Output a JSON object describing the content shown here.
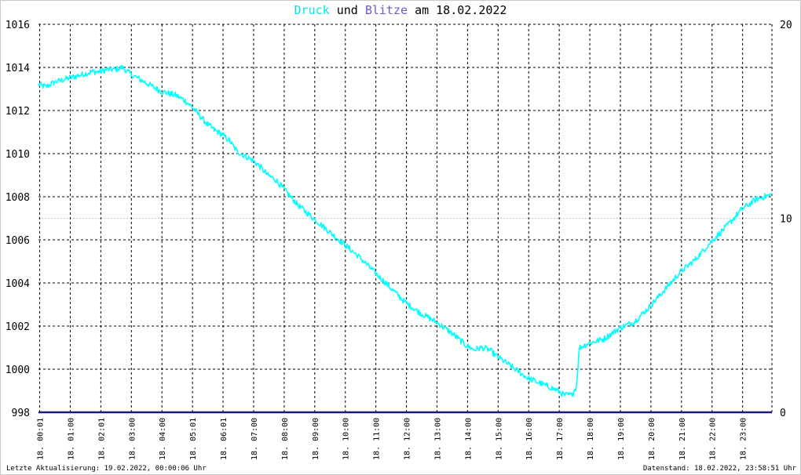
{
  "title": {
    "series1": "Druck",
    "connector1": "und",
    "series2": "Blitze",
    "connector2": "am",
    "date": "18.02.2022"
  },
  "footer": {
    "left": "Letzte Aktualisierung: 19.02.2022, 00:00:06 Uhr",
    "right": "Datenstand: 18.02.2022, 23:58:51 Uhr"
  },
  "colors": {
    "pressure": "#00ffff",
    "lightning": "#6a5acd",
    "title_pressure": "#00e5e5",
    "title_lightning": "#6a5acd",
    "baseline": "#1a1a80",
    "grid": "#000000",
    "ref_line": "#c8c8c8"
  },
  "chart_data": {
    "type": "line",
    "title": "Druck und Blitze am 18.02.2022",
    "x_tick_labels": [
      "18. 00:01",
      "18. 01:00",
      "18. 02:01",
      "18. 03:00",
      "18. 04:00",
      "18. 05:01",
      "18. 06:01",
      "18. 07:00",
      "18. 08:00",
      "18. 09:00",
      "18. 10:00",
      "18. 11:00",
      "18. 12:00",
      "18. 13:00",
      "18. 14:00",
      "18. 15:00",
      "18. 16:00",
      "18. 17:00",
      "18. 18:00",
      "18. 19:00",
      "18. 20:00",
      "18. 21:00",
      "18. 22:00",
      "18. 23:00"
    ],
    "xlim_hours": [
      0,
      24
    ],
    "y_left": {
      "ylim": [
        998,
        1016
      ],
      "ticks": [
        998,
        1000,
        1002,
        1004,
        1006,
        1008,
        1010,
        1012,
        1014,
        1016
      ]
    },
    "y_right": {
      "ylim": [
        0,
        20
      ],
      "ticks": [
        0,
        10,
        20
      ]
    },
    "reference_line_right": 10,
    "grid": true,
    "series": [
      {
        "name": "Druck",
        "axis": "left",
        "x_hours": [
          0.0,
          0.25,
          0.5,
          0.75,
          1.0,
          1.25,
          1.5,
          1.75,
          2.0,
          2.25,
          2.5,
          2.75,
          3.0,
          3.25,
          3.5,
          3.75,
          4.0,
          4.25,
          4.5,
          4.75,
          5.0,
          5.25,
          5.5,
          5.75,
          6.0,
          6.25,
          6.5,
          6.75,
          7.0,
          7.25,
          7.5,
          7.75,
          8.0,
          8.5,
          9.0,
          9.5,
          10.0,
          10.5,
          11.0,
          11.5,
          12.0,
          12.5,
          13.0,
          13.5,
          14.0,
          14.25,
          14.5,
          14.75,
          15.0,
          15.5,
          16.0,
          16.5,
          17.0,
          17.2,
          17.45,
          17.6,
          17.7,
          18.0,
          18.5,
          19.0,
          19.5,
          20.0,
          20.5,
          21.0,
          21.5,
          22.0,
          22.5,
          23.0,
          23.5,
          24.0
        ],
        "values": [
          1013.2,
          1013.1,
          1013.3,
          1013.4,
          1013.5,
          1013.6,
          1013.7,
          1013.8,
          1013.8,
          1013.9,
          1013.9,
          1014.0,
          1013.7,
          1013.5,
          1013.3,
          1013.1,
          1012.9,
          1012.8,
          1012.7,
          1012.5,
          1012.2,
          1011.8,
          1011.4,
          1011.1,
          1010.9,
          1010.6,
          1010.1,
          1009.9,
          1009.7,
          1009.4,
          1009.0,
          1008.8,
          1008.4,
          1007.6,
          1007.0,
          1006.4,
          1005.8,
          1005.2,
          1004.5,
          1003.8,
          1003.1,
          1002.6,
          1002.2,
          1001.7,
          1001.1,
          1000.9,
          1001.0,
          1000.9,
          1000.6,
          1000.1,
          999.6,
          999.3,
          999.0,
          998.8,
          998.8,
          999.2,
          1001.0,
          1001.2,
          1001.4,
          1001.9,
          1002.2,
          1002.9,
          1003.7,
          1004.5,
          1005.1,
          1005.9,
          1006.6,
          1007.4,
          1007.9,
          1008.1
        ]
      },
      {
        "name": "Blitze",
        "axis": "right",
        "x_hours": [
          0,
          24
        ],
        "values": [
          0,
          0
        ]
      }
    ]
  }
}
